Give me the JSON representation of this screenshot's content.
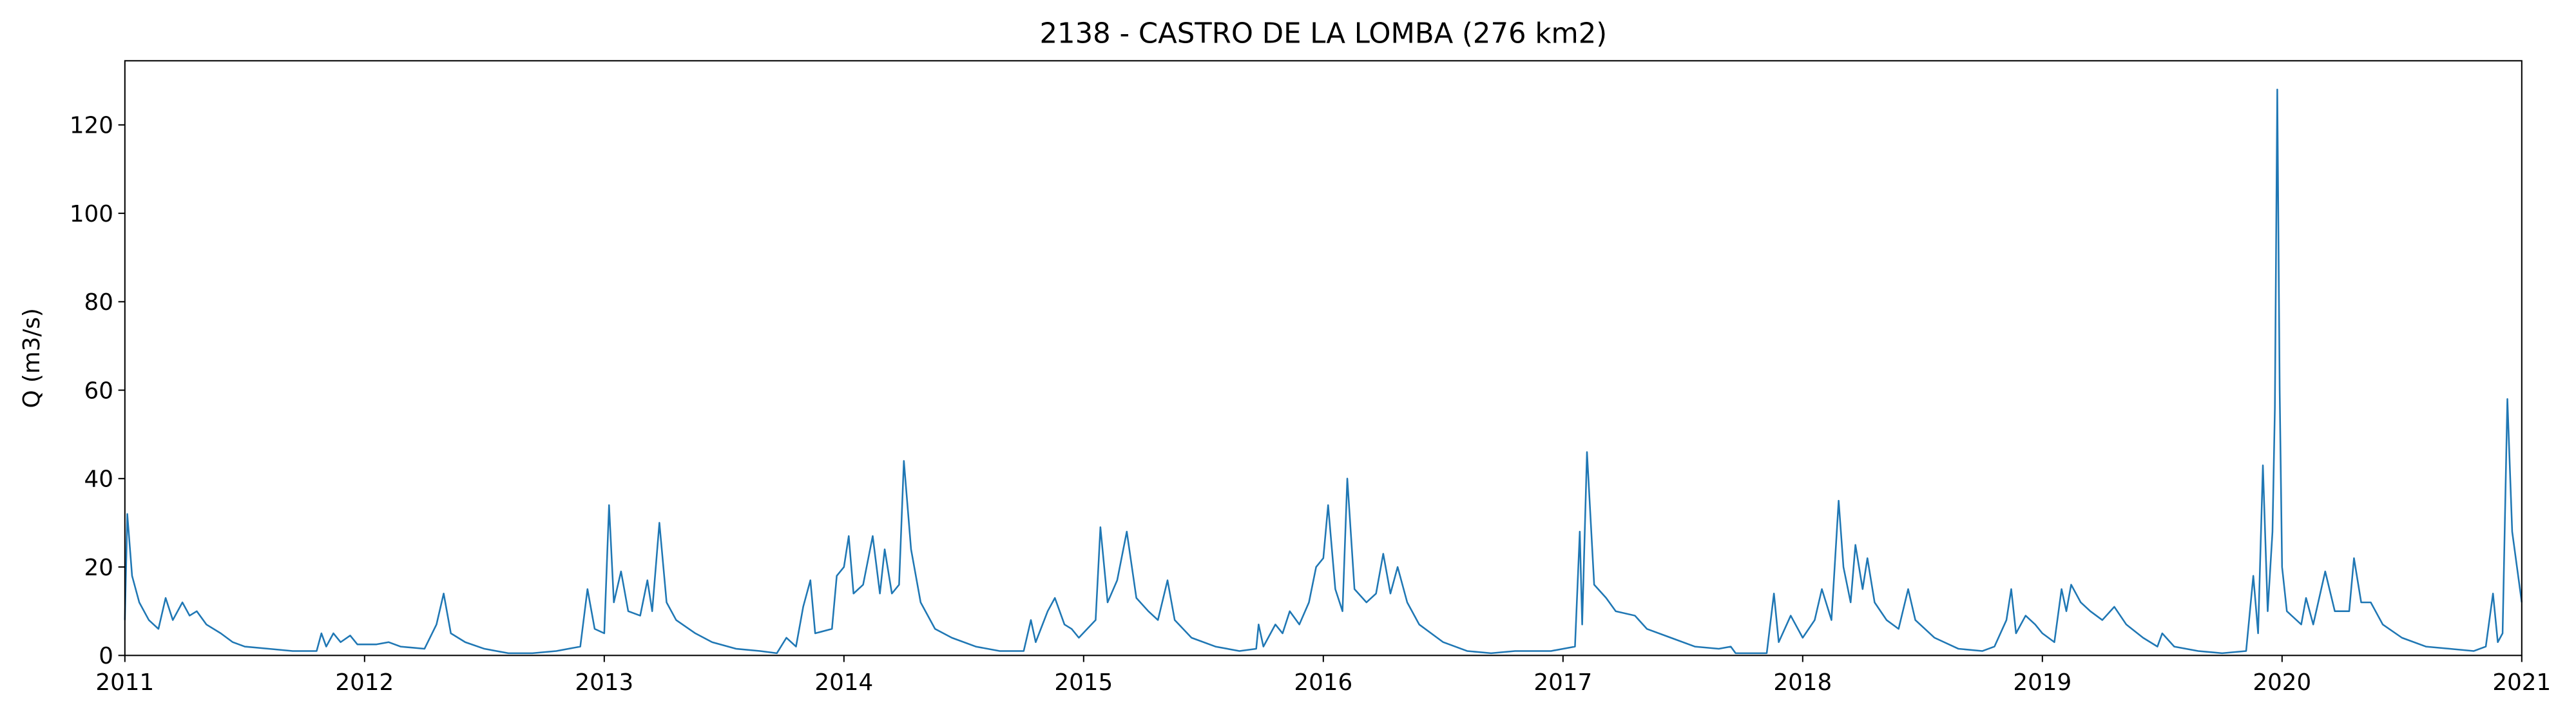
{
  "chart_data": {
    "type": "line",
    "title": "2138 - CASTRO DE LA LOMBA (276 km2)",
    "y_label": "Q (m3/s)",
    "x": [
      2011.0,
      2011.01,
      2011.03,
      2011.06,
      2011.1,
      2011.14,
      2011.17,
      2011.2,
      2011.24,
      2011.27,
      2011.3,
      2011.34,
      2011.4,
      2011.45,
      2011.5,
      2011.6,
      2011.7,
      2011.8,
      2011.82,
      2011.84,
      2011.87,
      2011.9,
      2011.94,
      2011.97,
      2012.05,
      2012.1,
      2012.15,
      2012.25,
      2012.3,
      2012.33,
      2012.36,
      2012.42,
      2012.5,
      2012.6,
      2012.7,
      2012.8,
      2012.9,
      2012.93,
      2012.96,
      2013.0,
      2013.02,
      2013.04,
      2013.07,
      2013.1,
      2013.15,
      2013.18,
      2013.2,
      2013.23,
      2013.26,
      2013.3,
      2013.38,
      2013.45,
      2013.55,
      2013.65,
      2013.72,
      2013.76,
      2013.8,
      2013.83,
      2013.86,
      2013.88,
      2013.95,
      2013.97,
      2014.0,
      2014.02,
      2014.04,
      2014.08,
      2014.12,
      2014.15,
      2014.17,
      2014.2,
      2014.23,
      2014.25,
      2014.28,
      2014.32,
      2014.38,
      2014.45,
      2014.55,
      2014.65,
      2014.75,
      2014.78,
      2014.8,
      2014.85,
      2014.88,
      2014.92,
      2014.95,
      2014.98,
      2015.05,
      2015.07,
      2015.1,
      2015.14,
      2015.18,
      2015.22,
      2015.27,
      2015.31,
      2015.35,
      2015.38,
      2015.45,
      2015.55,
      2015.65,
      2015.72,
      2015.73,
      2015.75,
      2015.8,
      2015.83,
      2015.86,
      2015.9,
      2015.94,
      2015.97,
      2016.0,
      2016.02,
      2016.05,
      2016.08,
      2016.1,
      2016.13,
      2016.18,
      2016.22,
      2016.25,
      2016.28,
      2016.31,
      2016.35,
      2016.4,
      2016.5,
      2016.6,
      2016.7,
      2016.8,
      2016.9,
      2016.95,
      2017.05,
      2017.07,
      2017.08,
      2017.1,
      2017.13,
      2017.18,
      2017.22,
      2017.3,
      2017.35,
      2017.45,
      2017.55,
      2017.65,
      2017.7,
      2017.72,
      2017.85,
      2017.88,
      2017.9,
      2017.95,
      2018.0,
      2018.05,
      2018.08,
      2018.12,
      2018.15,
      2018.17,
      2018.2,
      2018.22,
      2018.25,
      2018.27,
      2018.3,
      2018.35,
      2018.4,
      2018.44,
      2018.47,
      2018.55,
      2018.65,
      2018.75,
      2018.8,
      2018.85,
      2018.87,
      2018.89,
      2018.93,
      2018.97,
      2019.0,
      2019.05,
      2019.08,
      2019.1,
      2019.12,
      2019.16,
      2019.2,
      2019.25,
      2019.3,
      2019.35,
      2019.42,
      2019.48,
      2019.5,
      2019.55,
      2019.65,
      2019.75,
      2019.85,
      2019.88,
      2019.9,
      2019.92,
      2019.94,
      2019.96,
      2019.97,
      2019.98,
      2019.99,
      2020.0,
      2020.02,
      2020.08,
      2020.1,
      2020.13,
      2020.18,
      2020.22,
      2020.28,
      2020.3,
      2020.33,
      2020.37,
      2020.42,
      2020.5,
      2020.6,
      2020.7,
      2020.8,
      2020.85,
      2020.88,
      2020.9,
      2020.92,
      2020.94,
      2020.96,
      2020.98,
      2021.0
    ],
    "series": [
      {
        "color": "#1f77b4",
        "values": [
          8,
          32,
          18,
          12,
          8,
          6,
          13,
          8,
          12,
          9,
          10,
          7,
          5,
          3,
          2,
          1.5,
          1,
          1,
          5,
          2,
          5,
          3,
          4.5,
          2.5,
          2.5,
          3,
          2,
          1.5,
          7,
          14,
          5,
          3,
          1.5,
          0.5,
          0.5,
          1,
          2,
          15,
          6,
          5,
          34,
          12,
          19,
          10,
          9,
          17,
          10,
          30,
          12,
          8,
          5,
          3,
          1.5,
          1,
          0.5,
          4,
          2,
          11,
          17,
          5,
          6,
          18,
          20,
          27,
          14,
          16,
          27,
          14,
          24,
          14,
          16,
          44,
          24,
          12,
          6,
          4,
          2,
          1,
          1,
          8,
          3,
          10,
          13,
          7,
          6,
          4,
          8,
          29,
          12,
          17,
          28,
          13,
          10,
          8,
          17,
          8,
          4,
          2,
          1,
          1.5,
          7,
          2,
          7,
          5,
          10,
          7,
          12,
          20,
          22,
          34,
          15,
          10,
          40,
          15,
          12,
          14,
          23,
          14,
          20,
          12,
          7,
          3,
          1,
          0.5,
          1,
          1,
          1,
          2,
          28,
          7,
          46,
          16,
          13,
          10,
          9,
          6,
          4,
          2,
          1.5,
          2,
          0.5,
          0.5,
          14,
          3,
          9,
          4,
          8,
          15,
          8,
          35,
          20,
          12,
          25,
          15,
          22,
          12,
          8,
          6,
          15,
          8,
          4,
          1.5,
          1,
          2,
          8,
          15,
          5,
          9,
          7,
          5,
          3,
          15,
          10,
          16,
          12,
          10,
          8,
          11,
          7,
          4,
          2,
          5,
          2,
          1,
          0.5,
          1,
          18,
          5,
          43,
          10,
          28,
          56,
          128,
          60,
          20,
          10,
          7,
          13,
          7,
          19,
          10,
          10,
          22,
          12,
          12,
          7,
          4,
          2,
          1.5,
          1,
          2,
          14,
          3,
          5,
          58,
          28,
          20,
          12
        ]
      }
    ],
    "xlim": [
      2011,
      2021
    ],
    "xticks": [
      2011,
      2012,
      2013,
      2014,
      2015,
      2016,
      2017,
      2018,
      2019,
      2020,
      2021
    ],
    "ylim": [
      0,
      134.5
    ],
    "yticks": [
      0,
      20,
      40,
      60,
      80,
      100,
      120
    ]
  }
}
